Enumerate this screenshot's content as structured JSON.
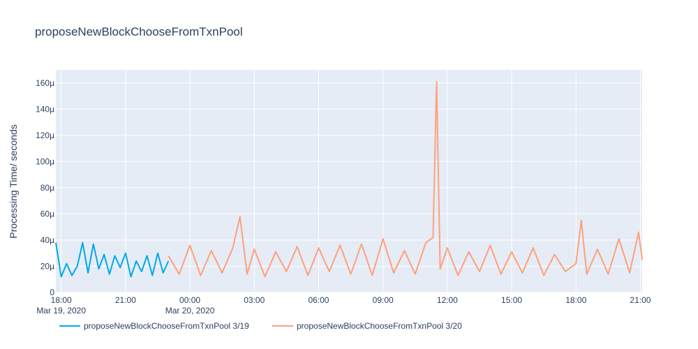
{
  "chart_data": {
    "type": "line",
    "title": "proposeNewBlockChooseFromTxnPool",
    "ylabel": "Processing Time/ seconds",
    "xlabel": "",
    "grid": true,
    "legend_position": "bottom-left",
    "ylim": [
      0,
      0.00017
    ],
    "xlim": [
      "2020-03-19 17:45",
      "2020-03-20 21:05"
    ],
    "y_ticks": [
      {
        "value": 0,
        "label": "0"
      },
      {
        "value": 2e-05,
        "label": "20µ"
      },
      {
        "value": 4e-05,
        "label": "40µ"
      },
      {
        "value": 6e-05,
        "label": "60µ"
      },
      {
        "value": 8e-05,
        "label": "80µ"
      },
      {
        "value": 0.0001,
        "label": "100µ"
      },
      {
        "value": 0.00012,
        "label": "120µ"
      },
      {
        "value": 0.00014,
        "label": "140µ"
      },
      {
        "value": 0.00016,
        "label": "160µ"
      }
    ],
    "x_ticks": [
      {
        "value": "2020-03-19 18:00",
        "label": "18:00",
        "sublabel": "Mar 19, 2020"
      },
      {
        "value": "2020-03-19 21:00",
        "label": "21:00",
        "sublabel": ""
      },
      {
        "value": "2020-03-20 00:00",
        "label": "00:00",
        "sublabel": "Mar 20, 2020"
      },
      {
        "value": "2020-03-20 03:00",
        "label": "03:00",
        "sublabel": ""
      },
      {
        "value": "2020-03-20 06:00",
        "label": "06:00",
        "sublabel": ""
      },
      {
        "value": "2020-03-20 09:00",
        "label": "09:00",
        "sublabel": ""
      },
      {
        "value": "2020-03-20 12:00",
        "label": "12:00",
        "sublabel": ""
      },
      {
        "value": "2020-03-20 15:00",
        "label": "15:00",
        "sublabel": ""
      },
      {
        "value": "2020-03-20 18:00",
        "label": "18:00",
        "sublabel": ""
      },
      {
        "value": "2020-03-20 21:00",
        "label": "21:00",
        "sublabel": ""
      }
    ],
    "series": [
      {
        "name": "proposeNewBlockChooseFromTxnPool 3/19",
        "color": "#00a8e8",
        "x": [
          "2020-03-19 17:45",
          "2020-03-19 18:00",
          "2020-03-19 18:15",
          "2020-03-19 18:30",
          "2020-03-19 18:45",
          "2020-03-19 19:00",
          "2020-03-19 19:15",
          "2020-03-19 19:30",
          "2020-03-19 19:45",
          "2020-03-19 20:00",
          "2020-03-19 20:15",
          "2020-03-19 20:30",
          "2020-03-19 20:45",
          "2020-03-19 21:00",
          "2020-03-19 21:15",
          "2020-03-19 21:30",
          "2020-03-19 21:45",
          "2020-03-19 22:00",
          "2020-03-19 22:15",
          "2020-03-19 22:30",
          "2020-03-19 22:45",
          "2020-03-19 23:00"
        ],
        "y": [
          3.8e-05,
          1.2e-05,
          2.2e-05,
          1.3e-05,
          2e-05,
          3.8e-05,
          1.5e-05,
          3.7e-05,
          1.8e-05,
          2.9e-05,
          1.4e-05,
          2.8e-05,
          1.9e-05,
          3e-05,
          1.2e-05,
          2.4e-05,
          1.6e-05,
          2.8e-05,
          1.3e-05,
          3e-05,
          1.5e-05,
          2.4e-05
        ]
      },
      {
        "name": "proposeNewBlockChooseFromTxnPool 3/20",
        "color": "#ffa07a",
        "x": [
          "2020-03-19 23:00",
          "2020-03-19 23:30",
          "2020-03-20 00:00",
          "2020-03-20 00:30",
          "2020-03-20 01:00",
          "2020-03-20 01:30",
          "2020-03-20 02:00",
          "2020-03-20 02:20",
          "2020-03-20 02:40",
          "2020-03-20 03:00",
          "2020-03-20 03:30",
          "2020-03-20 04:00",
          "2020-03-20 04:30",
          "2020-03-20 05:00",
          "2020-03-20 05:30",
          "2020-03-20 06:00",
          "2020-03-20 06:30",
          "2020-03-20 07:00",
          "2020-03-20 07:30",
          "2020-03-20 08:00",
          "2020-03-20 08:30",
          "2020-03-20 09:00",
          "2020-03-20 09:30",
          "2020-03-20 10:00",
          "2020-03-20 10:30",
          "2020-03-20 11:00",
          "2020-03-20 11:20",
          "2020-03-20 11:30",
          "2020-03-20 11:40",
          "2020-03-20 12:00",
          "2020-03-20 12:30",
          "2020-03-20 13:00",
          "2020-03-20 13:30",
          "2020-03-20 14:00",
          "2020-03-20 14:30",
          "2020-03-20 15:00",
          "2020-03-20 15:30",
          "2020-03-20 16:00",
          "2020-03-20 16:30",
          "2020-03-20 17:00",
          "2020-03-20 17:30",
          "2020-03-20 18:00",
          "2020-03-20 18:15",
          "2020-03-20 18:30",
          "2020-03-20 19:00",
          "2020-03-20 19:30",
          "2020-03-20 20:00",
          "2020-03-20 20:30",
          "2020-03-20 20:55",
          "2020-03-20 21:05"
        ],
        "y": [
          2.8e-05,
          1.4e-05,
          3.6e-05,
          1.3e-05,
          3.2e-05,
          1.5e-05,
          3.4e-05,
          5.8e-05,
          1.4e-05,
          3.3e-05,
          1.2e-05,
          3.1e-05,
          1.6e-05,
          3.5e-05,
          1.3e-05,
          3.4e-05,
          1.6e-05,
          3.6e-05,
          1.4e-05,
          3.7e-05,
          1.3e-05,
          4.1e-05,
          1.5e-05,
          3.2e-05,
          1.4e-05,
          3.8e-05,
          4.2e-05,
          0.000161,
          1.8e-05,
          3.4e-05,
          1.3e-05,
          3.1e-05,
          1.6e-05,
          3.6e-05,
          1.4e-05,
          3.1e-05,
          1.5e-05,
          3.4e-05,
          1.3e-05,
          2.9e-05,
          1.6e-05,
          2.2e-05,
          5.5e-05,
          1.4e-05,
          3.3e-05,
          1.4e-05,
          4.1e-05,
          1.5e-05,
          4.6e-05,
          2.5e-05
        ]
      }
    ]
  }
}
